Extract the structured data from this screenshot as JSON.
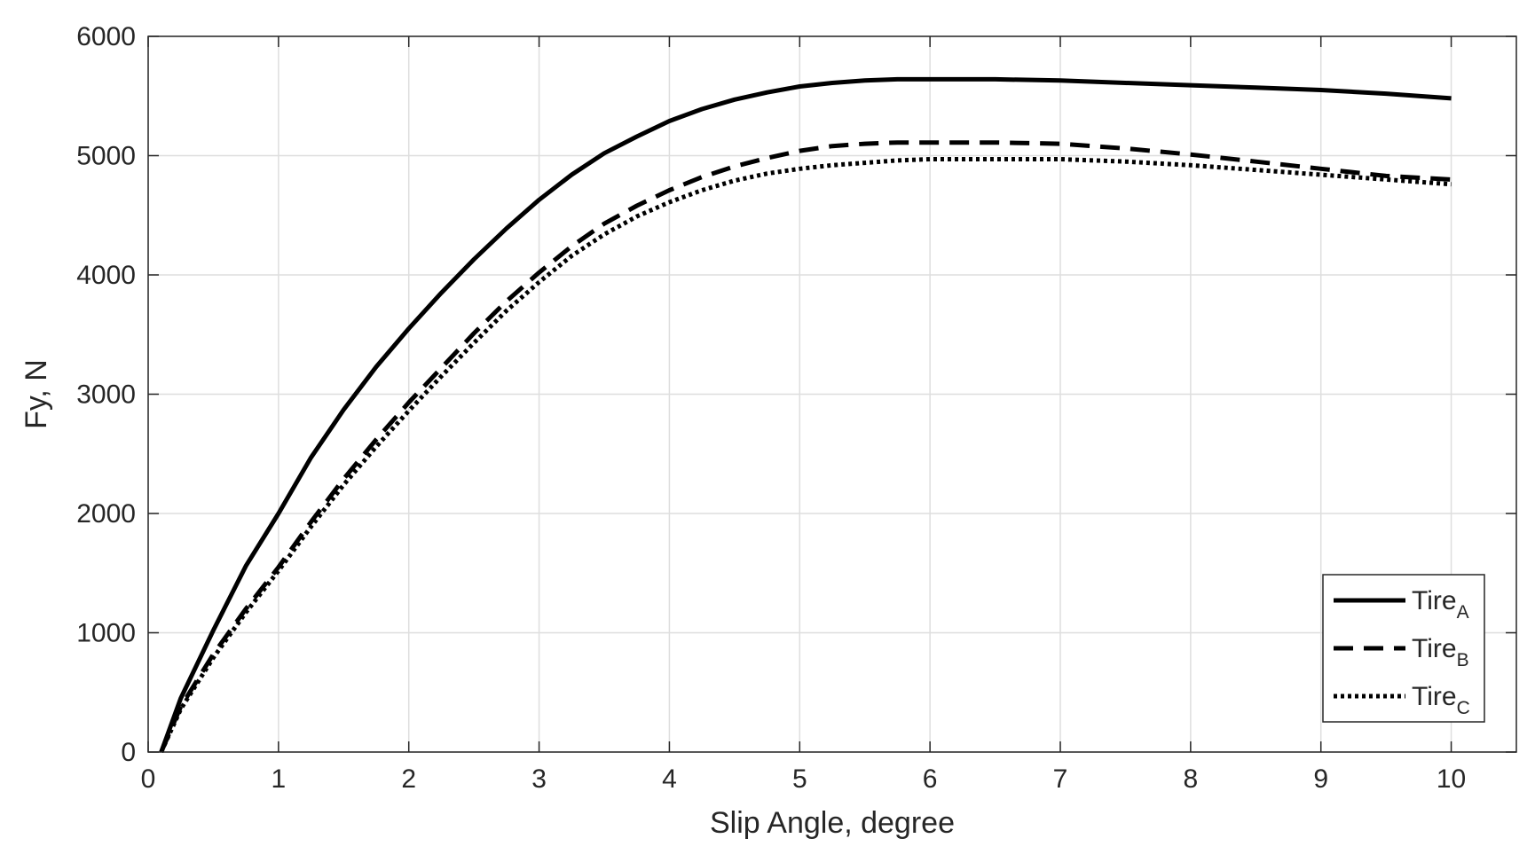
{
  "chart_data": {
    "type": "line",
    "xlabel": "Slip Angle, degree",
    "ylabel": "Fy, N",
    "xlim": [
      0,
      10.5
    ],
    "ylim": [
      0,
      6000
    ],
    "xticks": [
      0,
      1,
      2,
      3,
      4,
      5,
      6,
      7,
      8,
      9,
      10
    ],
    "yticks": [
      0,
      1000,
      2000,
      3000,
      4000,
      5000,
      6000
    ],
    "grid": true,
    "legend_position": "bottom-right",
    "colors": {
      "line": "#000000",
      "grid": "#dedede",
      "axes": "#262626",
      "background": "#ffffff"
    },
    "x": [
      0.1,
      0.25,
      0.5,
      0.75,
      1,
      1.25,
      1.5,
      1.75,
      2,
      2.25,
      2.5,
      2.75,
      3,
      3.25,
      3.5,
      3.75,
      4,
      4.25,
      4.5,
      4.75,
      5,
      5.25,
      5.5,
      5.75,
      6,
      6.5,
      7,
      7.5,
      8,
      8.5,
      9,
      9.5,
      10
    ],
    "series": [
      {
        "name": "Tire",
        "subscript": "A",
        "style": "solid",
        "values": [
          0,
          450,
          1020,
          1560,
          2000,
          2470,
          2870,
          3230,
          3550,
          3850,
          4130,
          4390,
          4630,
          4840,
          5020,
          5160,
          5290,
          5390,
          5470,
          5530,
          5580,
          5610,
          5630,
          5640,
          5640,
          5640,
          5630,
          5610,
          5590,
          5570,
          5550,
          5520,
          5480
        ]
      },
      {
        "name": "Tire",
        "subscript": "B",
        "style": "dashed",
        "values": [
          0,
          380,
          820,
          1200,
          1550,
          1930,
          2290,
          2620,
          2930,
          3220,
          3510,
          3780,
          4020,
          4240,
          4430,
          4580,
          4710,
          4820,
          4910,
          4980,
          5040,
          5080,
          5100,
          5110,
          5110,
          5110,
          5100,
          5060,
          5010,
          4950,
          4890,
          4830,
          4800
        ]
      },
      {
        "name": "Tire",
        "subscript": "C",
        "style": "dotted",
        "values": [
          0,
          360,
          790,
          1170,
          1520,
          1890,
          2240,
          2560,
          2860,
          3150,
          3430,
          3700,
          3940,
          4160,
          4340,
          4490,
          4610,
          4710,
          4790,
          4850,
          4890,
          4920,
          4940,
          4960,
          4970,
          4970,
          4970,
          4950,
          4920,
          4880,
          4840,
          4800,
          4760
        ]
      }
    ]
  }
}
